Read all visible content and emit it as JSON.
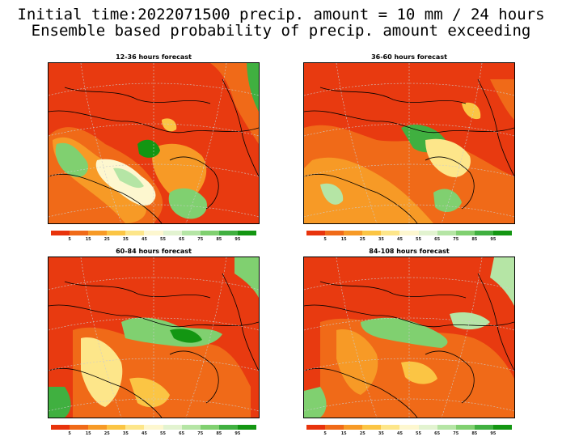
{
  "title_line1": "Initial time:2022071500 precip. amount = 10 mm / 24 hours",
  "title_line2": "Ensemble based probability of precip. amount exceeding",
  "colorbar": {
    "colors": [
      "#e8330c",
      "#f06a18",
      "#f79a26",
      "#fbc544",
      "#fde68a",
      "#fdf7cf",
      "#e2f3d0",
      "#b5e5a5",
      "#80d070",
      "#40b040",
      "#139612"
    ],
    "labels": [
      "5",
      "15",
      "25",
      "35",
      "45",
      "55",
      "65",
      "75",
      "85",
      "95"
    ]
  },
  "panels": [
    {
      "title": "12-36 hours forecast"
    },
    {
      "title": "36-60 hours forecast"
    },
    {
      "title": "60-84 hours forecast"
    },
    {
      "title": "84-108 hours forecast"
    }
  ]
}
